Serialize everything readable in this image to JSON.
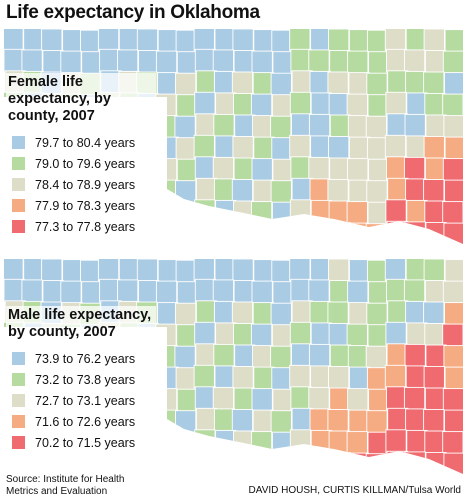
{
  "title": "Life expectancy in Oklahoma",
  "colors": {
    "class1": "#a9cbe4",
    "class2": "#b6dba1",
    "class3": "#deddc8",
    "class4": "#f6ac83",
    "class5": "#ef6b70",
    "border": "#ffffff"
  },
  "maps": [
    {
      "legend_title": "Female life expectancy, by county, 2007",
      "legend": [
        {
          "label": "79.7 to 80.4 years",
          "color": "#a9cbe4"
        },
        {
          "label": "79.0 to 79.6 years",
          "color": "#b6dba1"
        },
        {
          "label": "78.4 to 78.9 years",
          "color": "#deddc8"
        },
        {
          "label": "77.9 to 78.3 years",
          "color": "#f6ac83"
        },
        {
          "label": "77.3 to 77.8 years",
          "color": "#ef6b70"
        }
      ]
    },
    {
      "legend_title": "Male life expectancy, by county, 2007",
      "legend": [
        {
          "label": "73.9 to 76.2 years",
          "color": "#a9cbe4"
        },
        {
          "label": "73.2 to 73.8 years",
          "color": "#b6dba1"
        },
        {
          "label": "72.7 to 73.1 years",
          "color": "#deddc8"
        },
        {
          "label": "71.6 to 72.6 years",
          "color": "#f6ac83"
        },
        {
          "label": "70.2 to 71.5 years",
          "color": "#ef6b70"
        }
      ]
    }
  ],
  "source_line1": "Source: Institute for Health",
  "source_line2": "Metrics and Evaluation",
  "credit": "DAVID HOUSH, CURTIS KILLMAN/Tulsa World"
}
